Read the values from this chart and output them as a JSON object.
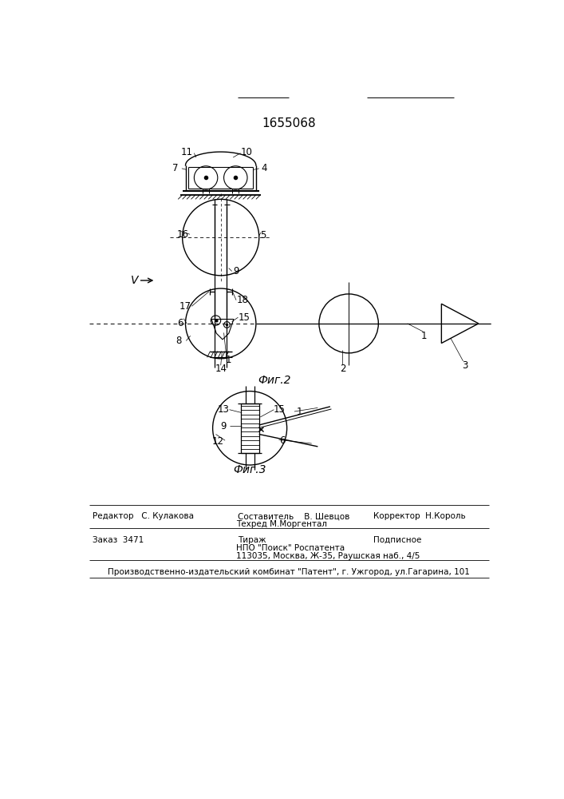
{
  "title": "1655068",
  "bg_color": "#ffffff",
  "line_color": "#000000",
  "fig2_label": "Фиг.2",
  "fig3_label": "Фиг.3",
  "footer": {
    "editor": "Редактор   С. Кулакова",
    "composer": "Составитель    В. Шевцов",
    "techred": "Техред М.Моргентал",
    "corrector": "Корректор  Н.Король",
    "order": "Заказ  3471",
    "tirazh": "Тираж",
    "podpisnoe": "Подписное",
    "npo": "НПО \"Поиск\" Роспатента",
    "address": "113035, Москва, Ж-35, Раушская наб., 4/5",
    "plant": "Производственно-издательский комбинат \"Патент\", г. Ужгород, ул.Гагарина, 101"
  }
}
